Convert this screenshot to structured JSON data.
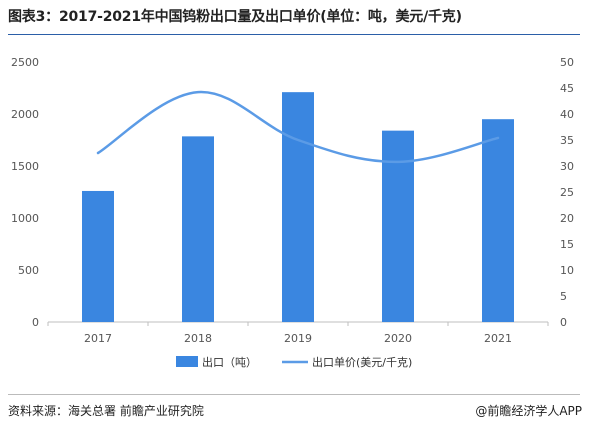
{
  "title": "图表3：2017-2021年中国钨粉出口量及出口单价(单位：吨，美元/千克)",
  "footer": {
    "source": "资料来源：海关总署 前瞻产业研究院",
    "credit": "@前瞻经济学人APP"
  },
  "colors": {
    "bar": "#3a86e0",
    "line": "#5b9be6",
    "title_rule": "#2b5fa8"
  },
  "chart_data": {
    "type": "bar",
    "categories": [
      "2017",
      "2018",
      "2019",
      "2020",
      "2021"
    ],
    "series": [
      {
        "name": "出口（吨）",
        "type": "bar",
        "axis": "left",
        "values": [
          1260,
          1785,
          2210,
          1840,
          1950
        ]
      },
      {
        "name": "出口单价(美元/千克)",
        "type": "line",
        "axis": "right",
        "smooth": true,
        "values": [
          32.5,
          44.2,
          35.0,
          30.8,
          35.4
        ]
      }
    ],
    "y_left": {
      "min": 0,
      "max": 2500,
      "ticks": [
        0,
        500,
        1000,
        1500,
        2000,
        2500
      ]
    },
    "y_right": {
      "min": 0,
      "max": 50,
      "ticks": [
        0,
        5,
        10,
        15,
        20,
        25,
        30,
        35,
        40,
        45,
        50
      ]
    },
    "grid": false,
    "legend_position": "bottom"
  }
}
